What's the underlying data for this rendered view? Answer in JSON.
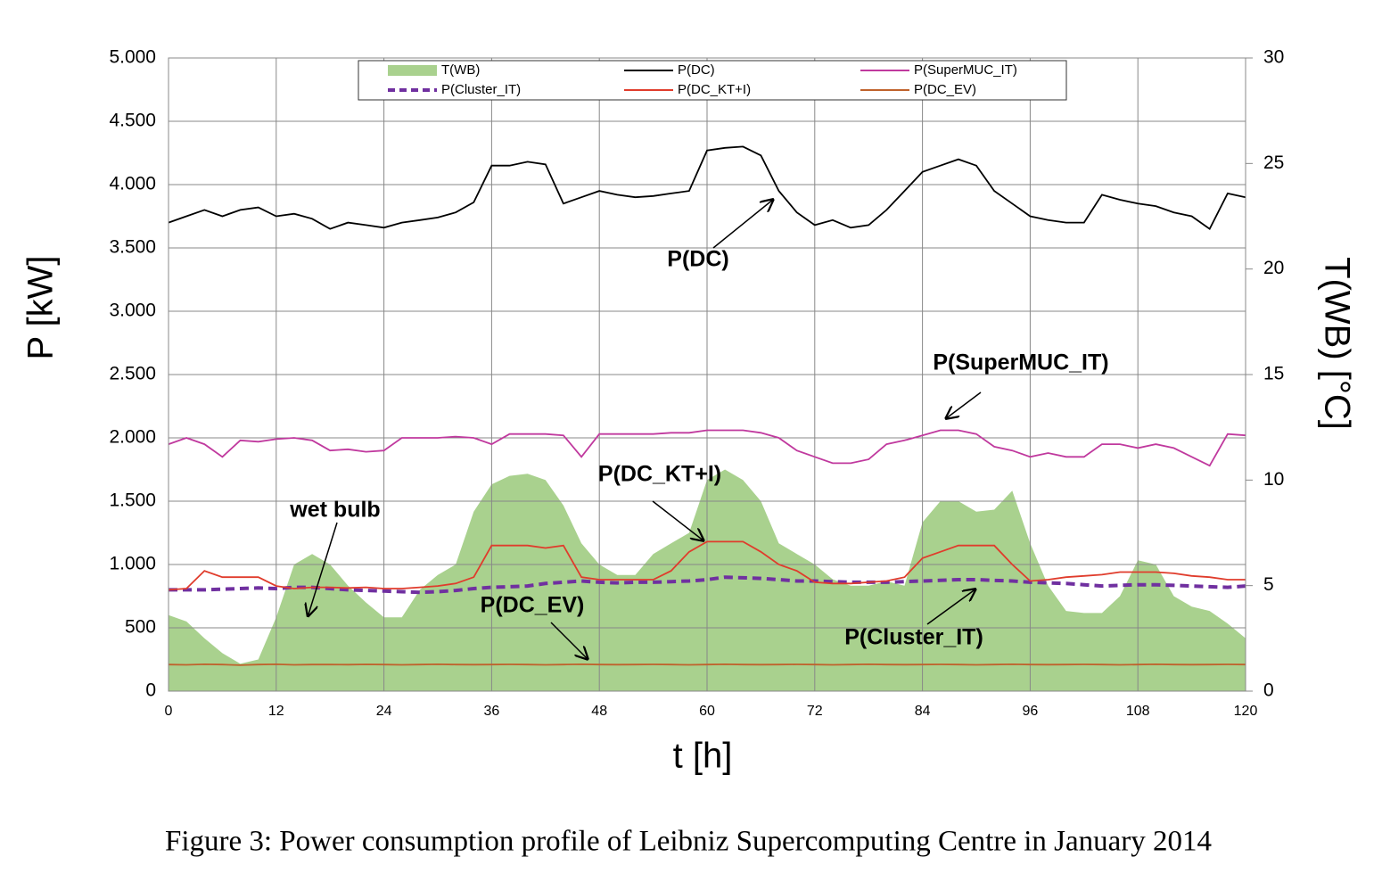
{
  "chart_data": {
    "type": "line",
    "caption": "Figure 3: Power consumption profile of Leibniz Supercomputing Centre in January 2014",
    "xlabel": "t [h]",
    "ylabel": "P [kW]",
    "y2label": "T(WB) [°C]",
    "xlim": [
      0,
      120
    ],
    "xticks": [
      0,
      12,
      24,
      36,
      48,
      60,
      72,
      84,
      96,
      108,
      120
    ],
    "ylim": [
      0,
      5000
    ],
    "yticks": [
      0,
      500,
      {
        "value": 1000,
        "label": "1.000"
      },
      {
        "value": 1500,
        "label": "1.500"
      },
      {
        "value": 2000,
        "label": "2.000"
      },
      {
        "value": 2500,
        "label": "2.500"
      },
      {
        "value": 3000,
        "label": "3.000"
      },
      {
        "value": 3500,
        "label": "3.500"
      },
      {
        "value": 4000,
        "label": "4.000"
      },
      {
        "value": 4500,
        "label": "4.500"
      },
      {
        "value": 5000,
        "label": "5.000"
      }
    ],
    "y2lim": [
      0,
      30
    ],
    "y2ticks": [
      0,
      5,
      10,
      15,
      20,
      25,
      30
    ],
    "grid": true,
    "x": [
      0,
      2,
      4,
      6,
      8,
      10,
      12,
      14,
      16,
      18,
      20,
      22,
      24,
      26,
      28,
      30,
      32,
      34,
      36,
      38,
      40,
      42,
      44,
      46,
      48,
      50,
      52,
      54,
      56,
      58,
      60,
      62,
      64,
      66,
      68,
      70,
      72,
      74,
      76,
      78,
      80,
      82,
      84,
      86,
      88,
      90,
      92,
      94,
      96,
      98,
      100,
      102,
      104,
      106,
      108,
      110,
      112,
      114,
      116,
      118,
      120
    ],
    "series": [
      {
        "name": "T(WB)",
        "color": "#a9d18e",
        "kind": "area",
        "axis": "y2",
        "values": [
          3.6,
          3.3,
          2.5,
          1.8,
          1.3,
          1.5,
          3.5,
          6.0,
          6.5,
          6.0,
          5.0,
          4.2,
          3.5,
          3.5,
          4.8,
          5.5,
          6.0,
          8.5,
          9.8,
          10.2,
          10.3,
          10.0,
          8.8,
          7.0,
          6.0,
          5.5,
          5.5,
          6.5,
          7.0,
          7.5,
          10.0,
          10.5,
          10.0,
          9.0,
          7.0,
          6.5,
          6.0,
          5.3,
          5.0,
          5.0,
          5.2,
          5.0,
          8.0,
          9.0,
          9.0,
          8.5,
          8.6,
          9.5,
          7.0,
          5.0,
          3.8,
          3.7,
          3.7,
          4.5,
          6.2,
          6.0,
          4.5,
          4.0,
          3.8,
          3.2,
          2.5
        ]
      },
      {
        "name": "P(DC)",
        "color": "#000000",
        "values": [
          3700,
          3750,
          3800,
          3750,
          3800,
          3820,
          3750,
          3770,
          3730,
          3650,
          3700,
          3680,
          3660,
          3700,
          3720,
          3740,
          3780,
          3860,
          4150,
          4150,
          4180,
          4160,
          3850,
          3900,
          3950,
          3920,
          3900,
          3910,
          3930,
          3950,
          4270,
          4290,
          4300,
          4230,
          3950,
          3780,
          3680,
          3720,
          3660,
          3680,
          3800,
          3950,
          4100,
          4150,
          4200,
          4150,
          3950,
          3850,
          3750,
          3720,
          3700,
          3700,
          3920,
          3880,
          3850,
          3830,
          3780,
          3750,
          3650,
          3930,
          3900
        ]
      },
      {
        "name": "P(SuperMUC_IT)",
        "color": "#c0399e",
        "values": [
          1950,
          2000,
          1950,
          1850,
          1980,
          1970,
          1990,
          2000,
          1980,
          1900,
          1910,
          1890,
          1900,
          2000,
          2000,
          2000,
          2010,
          2000,
          1950,
          2030,
          2030,
          2030,
          2020,
          1850,
          2030,
          2030,
          2030,
          2030,
          2040,
          2040,
          2060,
          2060,
          2060,
          2040,
          2000,
          1900,
          1850,
          1800,
          1800,
          1830,
          1950,
          1980,
          2020,
          2060,
          2060,
          2030,
          1930,
          1900,
          1850,
          1880,
          1850,
          1850,
          1950,
          1950,
          1920,
          1950,
          1920,
          1850,
          1780,
          2030,
          2020
        ]
      },
      {
        "name": "P(Cluster_IT)",
        "color": "#7030a0",
        "dash": true,
        "values": [
          800,
          800,
          800,
          805,
          810,
          815,
          810,
          820,
          820,
          810,
          800,
          795,
          790,
          785,
          780,
          785,
          795,
          810,
          820,
          825,
          830,
          850,
          860,
          870,
          860,
          855,
          860,
          860,
          865,
          870,
          880,
          900,
          895,
          890,
          880,
          870,
          870,
          865,
          860,
          860,
          860,
          865,
          870,
          875,
          880,
          880,
          875,
          870,
          860,
          855,
          850,
          840,
          830,
          835,
          840,
          840,
          835,
          830,
          825,
          820,
          830
        ]
      },
      {
        "name": "P(DC_KT+I)",
        "color": "#e03c2c",
        "values": [
          800,
          810,
          950,
          900,
          900,
          900,
          830,
          810,
          820,
          820,
          815,
          820,
          810,
          810,
          820,
          830,
          850,
          900,
          1150,
          1150,
          1150,
          1130,
          1150,
          900,
          880,
          880,
          880,
          880,
          950,
          1100,
          1180,
          1180,
          1180,
          1100,
          1000,
          950,
          860,
          850,
          850,
          860,
          870,
          900,
          1050,
          1100,
          1150,
          1150,
          1150,
          1000,
          870,
          880,
          900,
          910,
          920,
          940,
          940,
          940,
          930,
          910,
          900,
          880,
          880
        ]
      },
      {
        "name": "P(DC_EV)",
        "color": "#c0622c",
        "values": [
          210,
          208,
          212,
          210,
          205,
          210,
          212,
          208,
          210,
          210,
          209,
          211,
          210,
          208,
          210,
          212,
          210,
          209,
          210,
          211,
          210,
          208,
          210,
          212,
          210,
          209,
          210,
          211,
          210,
          208,
          210,
          212,
          210,
          209,
          210,
          211,
          210,
          208,
          210,
          212,
          210,
          209,
          210,
          211,
          210,
          208,
          210,
          212,
          210,
          209,
          210,
          211,
          210,
          208,
          210,
          212,
          210,
          209,
          210,
          211,
          210
        ]
      }
    ],
    "annotations": [
      "P(DC)",
      "P(SuperMUC_IT)",
      "P(DC_KT+I)",
      "wet bulb",
      "P(DC_EV)",
      "P(Cluster_IT)"
    ]
  }
}
